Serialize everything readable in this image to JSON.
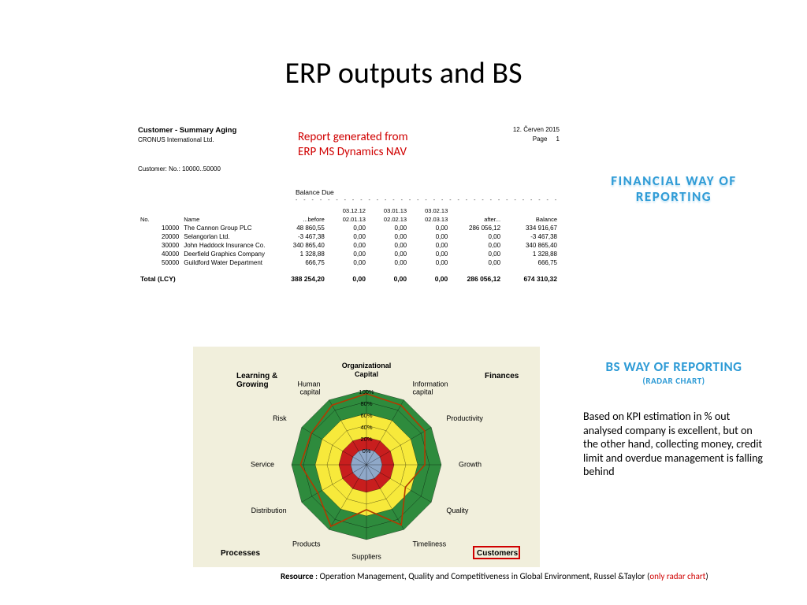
{
  "title": "ERP outputs and BS",
  "report": {
    "heading": "Customer - Summary Aging",
    "company": "CRONUS International Ltd.",
    "date": "12. Červen 2015",
    "page_label": "Page",
    "page_num": "1",
    "customer_range": "Customer: No.: 10000..50000",
    "balance_due": "Balance Due",
    "caption_l1": "Report generated from",
    "caption_l2": "ERP MS Dynamics NAV",
    "columns": {
      "no": "No.",
      "name": "Name",
      "before": "...before",
      "d1a": "03.12.12",
      "d1b": "02.01.13",
      "d2a": "03.01.13",
      "d2b": "02.02.13",
      "d3a": "03.02.13",
      "d3b": "02.03.13",
      "after": "after...",
      "balance": "Balance"
    },
    "rows": [
      {
        "no": "10000",
        "name": "The Cannon Group PLC",
        "before": "48 860,55",
        "c1": "0,00",
        "c2": "0,00",
        "c3": "0,00",
        "after": "286 056,12",
        "balance": "334 916,67"
      },
      {
        "no": "20000",
        "name": "Selangorlan Ltd.",
        "before": "-3 467,38",
        "c1": "0,00",
        "c2": "0,00",
        "c3": "0,00",
        "after": "0,00",
        "balance": "-3 467,38"
      },
      {
        "no": "30000",
        "name": "John Haddock Insurance Co.",
        "before": "340 865,40",
        "c1": "0,00",
        "c2": "0,00",
        "c3": "0,00",
        "after": "0,00",
        "balance": "340 865,40"
      },
      {
        "no": "40000",
        "name": "Deerfield Graphics Company",
        "before": "1 328,88",
        "c1": "0,00",
        "c2": "0,00",
        "c3": "0,00",
        "after": "0,00",
        "balance": "1 328,88"
      },
      {
        "no": "50000",
        "name": "Guildford Water Department",
        "before": "666,75",
        "c1": "0,00",
        "c2": "0,00",
        "c3": "0,00",
        "after": "0,00",
        "balance": "666,75"
      }
    ],
    "total": {
      "label": "Total (LCY)",
      "before": "388 254,20",
      "c1": "0,00",
      "c2": "0,00",
      "c3": "0,00",
      "after": "286 056,12",
      "balance": "674 310,32"
    }
  },
  "labels": {
    "financial": "FINANCIAL  WAY  OF REPORTING",
    "bs": "BS WAY OF REPORTING",
    "bs_sub": "(RADAR CHART)"
  },
  "body_text": "Based on KPI estimation in %  out analysed  company is excellent, but on the other hand, collecting money,  credit limit and overdue management   is falling behind",
  "resource": {
    "label": "Resource",
    "text": "  : Operation Management, Quality and Competitiveness in Global  Environment, Russel &Taylor (",
    "red": "only radar chart",
    "close": ")"
  },
  "radar": {
    "type": "radar",
    "background": "#f1efdc",
    "center_title": "Organizational Capital",
    "corners": [
      "Learning & Growing",
      "Finances",
      "Customers",
      "Processes"
    ],
    "axes": [
      "Information capital",
      "Productivity",
      "Growth",
      "Quality",
      "Timeliness",
      "Suppliers",
      "Products",
      "Distribution",
      "Service",
      "Risk",
      "Human capital"
    ],
    "axis_count": 12,
    "axis_extra_top": "Organizational Capital",
    "ring_labels": [
      "100%",
      "80%",
      "60%",
      "40%",
      "20%",
      "0%"
    ],
    "ring_colors_out_to_in": [
      "#2e8b3d",
      "#2e8b3d",
      "#f7e93b",
      "#f7e93b",
      "#c81e1e",
      "#8fa8c8"
    ],
    "ring_radii": [
      95,
      80,
      65,
      50,
      35,
      20
    ],
    "line_color": "#b23a00",
    "line_width": 1.6,
    "values_pct": [
      95,
      92,
      90,
      78,
      60,
      93,
      60,
      95,
      75,
      88,
      85,
      92
    ],
    "highlight_box_color": "#d00000",
    "highlight_axis": "Customers",
    "title_fontsize": 10,
    "axis_fontsize": 9,
    "corner_fontsize": 10
  }
}
